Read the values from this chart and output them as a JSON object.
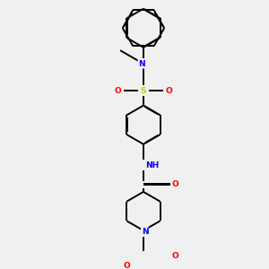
{
  "bg_color": "#f0f0f0",
  "bond_color": "#000000",
  "N_color": "#0000ff",
  "O_color": "#ff0000",
  "S_color": "#cccc00",
  "figsize": [
    3.0,
    3.0
  ],
  "dpi": 100,
  "lw": 1.4,
  "fs": 6.5,
  "db_off": 0.008,
  "xlim": [
    -1.8,
    1.8
  ],
  "ylim": [
    -4.2,
    4.2
  ]
}
